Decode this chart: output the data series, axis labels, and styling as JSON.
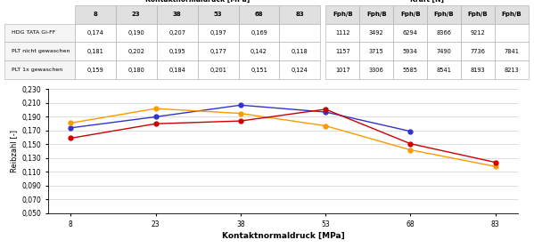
{
  "x_values": [
    8,
    23,
    38,
    53,
    68,
    83
  ],
  "series": [
    {
      "label": "HDG TATA Gi-FF",
      "color": "#3333cc",
      "marker": "o",
      "y": [
        0.174,
        0.19,
        0.207,
        0.197,
        0.169,
        null
      ]
    },
    {
      "label": "PLT nicht gewaschen",
      "color": "#ff9900",
      "marker": "o",
      "y": [
        0.181,
        0.202,
        0.195,
        0.177,
        0.142,
        0.118
      ]
    },
    {
      "label": "PLT 1x gewaschen",
      "color": "#cc0000",
      "marker": "o",
      "y": [
        0.159,
        0.18,
        0.184,
        0.201,
        0.151,
        0.124
      ]
    }
  ],
  "ylabel": "Reibzahl [-]",
  "xlabel": "Kontaktnormaldruck [MPa]",
  "ylim": [
    0.05,
    0.23
  ],
  "yticks": [
    0.05,
    0.07,
    0.09,
    0.11,
    0.13,
    0.15,
    0.17,
    0.19,
    0.21,
    0.23
  ],
  "xticks": [
    8,
    23,
    38,
    53,
    68,
    83
  ],
  "table1_title": "Kontaktnormaldruck [MPa]",
  "table2_title": "Kraft [N]",
  "table_rows": [
    "HDG TATA Gi-FF",
    "PLT nicht gewaschen",
    "PLT 1x gewaschen"
  ],
  "table1_cols": [
    "8",
    "23",
    "38",
    "53",
    "68",
    "83"
  ],
  "table1_data": [
    [
      "0,174",
      "0,190",
      "0,207",
      "0,197",
      "0,169",
      ""
    ],
    [
      "0,181",
      "0,202",
      "0,195",
      "0,177",
      "0,142",
      "0,118"
    ],
    [
      "0,159",
      "0,180",
      "0,184",
      "0,201",
      "0,151",
      "0,124"
    ]
  ],
  "table2_cols": [
    "Fph/B",
    "Fph/B",
    "Fph/B",
    "Fph/B",
    "Fph/B",
    "Fph/B"
  ],
  "table2_data": [
    [
      "1112",
      "3492",
      "6294",
      "8366",
      "9212",
      ""
    ],
    [
      "1157",
      "3715",
      "5934",
      "7490",
      "7736",
      "7841"
    ],
    [
      "1017",
      "3306",
      "5585",
      "8541",
      "8193",
      "8213"
    ]
  ],
  "bg_color": "#ffffff",
  "grid_color": "#d0d0d0",
  "table_header_bg": "#e0e0e0",
  "table_cell_bg": "#ffffff",
  "table_row_bg": "#f5f5f5"
}
